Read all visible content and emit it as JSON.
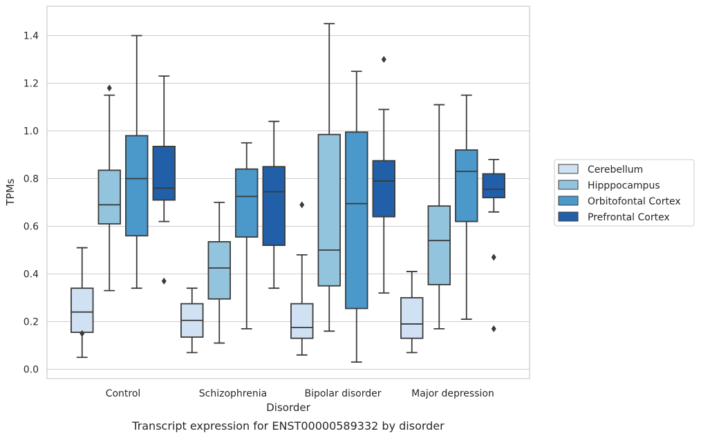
{
  "caption": "Transcript expression for ENST00000589332 by disorder",
  "chart_data": {
    "type": "box",
    "xlabel": "Disorder",
    "ylabel": "TPMs",
    "ylim": [
      -0.04,
      1.52
    ],
    "yticks": [
      0.0,
      0.2,
      0.4,
      0.6,
      0.8,
      1.0,
      1.2,
      1.4
    ],
    "ytick_labels": [
      "0.0",
      "0.2",
      "0.4",
      "0.6",
      "0.8",
      "1.0",
      "1.2",
      "1.4"
    ],
    "grid": "horizontal",
    "legend_position": "right",
    "categories": [
      "Control",
      "Schizophrenia",
      "Bipolar disorder",
      "Major depression"
    ],
    "series": [
      {
        "name": "Cerebellum",
        "color": "#cfe1f2",
        "boxes": [
          {
            "whisker_low": 0.05,
            "q1": 0.155,
            "median": 0.24,
            "q3": 0.34,
            "whisker_high": 0.51,
            "outliers": [
              0.15
            ]
          },
          {
            "whisker_low": 0.07,
            "q1": 0.135,
            "median": 0.205,
            "q3": 0.275,
            "whisker_high": 0.34,
            "outliers": []
          },
          {
            "whisker_low": 0.06,
            "q1": 0.13,
            "median": 0.175,
            "q3": 0.275,
            "whisker_high": 0.48,
            "outliers": [
              0.69
            ]
          },
          {
            "whisker_low": 0.07,
            "q1": 0.13,
            "median": 0.19,
            "q3": 0.3,
            "whisker_high": 0.41,
            "outliers": []
          }
        ]
      },
      {
        "name": "Hipppocampus",
        "color": "#93c4de",
        "boxes": [
          {
            "whisker_low": 0.33,
            "q1": 0.61,
            "median": 0.69,
            "q3": 0.835,
            "whisker_high": 1.15,
            "outliers": [
              1.18
            ]
          },
          {
            "whisker_low": 0.11,
            "q1": 0.295,
            "median": 0.425,
            "q3": 0.535,
            "whisker_high": 0.7,
            "outliers": []
          },
          {
            "whisker_low": 0.16,
            "q1": 0.35,
            "median": 0.5,
            "q3": 0.985,
            "whisker_high": 1.45,
            "outliers": []
          },
          {
            "whisker_low": 0.17,
            "q1": 0.355,
            "median": 0.54,
            "q3": 0.685,
            "whisker_high": 1.11,
            "outliers": []
          }
        ]
      },
      {
        "name": "Orbitofontal Cortex",
        "color": "#4b98ca",
        "boxes": [
          {
            "whisker_low": 0.34,
            "q1": 0.56,
            "median": 0.8,
            "q3": 0.98,
            "whisker_high": 1.4,
            "outliers": []
          },
          {
            "whisker_low": 0.17,
            "q1": 0.555,
            "median": 0.725,
            "q3": 0.84,
            "whisker_high": 0.95,
            "outliers": []
          },
          {
            "whisker_low": 0.03,
            "q1": 0.255,
            "median": 0.695,
            "q3": 0.995,
            "whisker_high": 1.25,
            "outliers": []
          },
          {
            "whisker_low": 0.21,
            "q1": 0.62,
            "median": 0.83,
            "q3": 0.92,
            "whisker_high": 1.15,
            "outliers": []
          }
        ]
      },
      {
        "name": "Prefrontal Cortex",
        "color": "#2160a9",
        "boxes": [
          {
            "whisker_low": 0.62,
            "q1": 0.71,
            "median": 0.76,
            "q3": 0.935,
            "whisker_high": 1.23,
            "outliers": [
              0.37
            ]
          },
          {
            "whisker_low": 0.34,
            "q1": 0.52,
            "median": 0.745,
            "q3": 0.85,
            "whisker_high": 1.04,
            "outliers": []
          },
          {
            "whisker_low": 0.32,
            "q1": 0.64,
            "median": 0.79,
            "q3": 0.875,
            "whisker_high": 1.09,
            "outliers": [
              1.3
            ]
          },
          {
            "whisker_low": 0.66,
            "q1": 0.72,
            "median": 0.755,
            "q3": 0.82,
            "whisker_high": 0.88,
            "outliers": [
              0.47,
              0.17
            ]
          }
        ]
      }
    ]
  }
}
